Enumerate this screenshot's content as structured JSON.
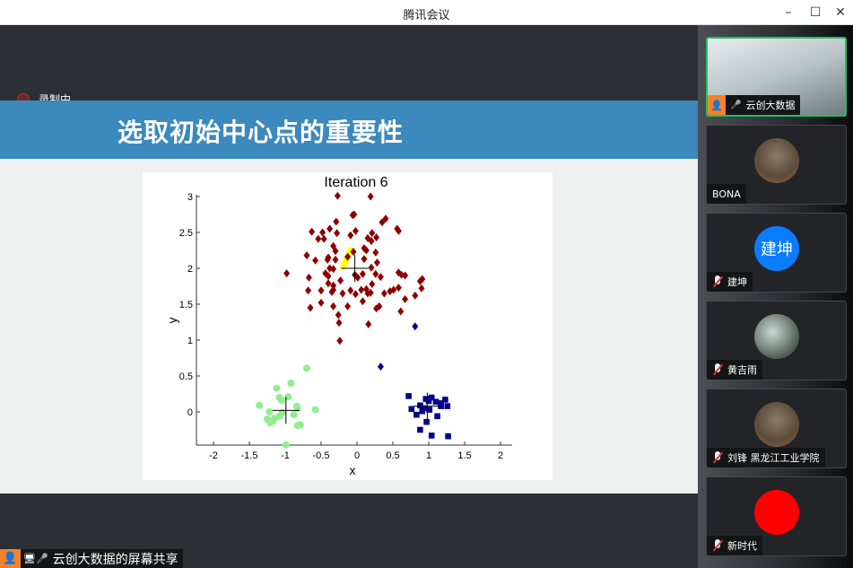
{
  "window": {
    "title": "腾讯会议",
    "controls": [
      "minimize-icon",
      "maximize-icon",
      "close-icon"
    ]
  },
  "recording": {
    "label": "录制中",
    "color": "#b33333"
  },
  "slide": {
    "title": "选取初始中心点的重要性",
    "band_color": "#3b89bd"
  },
  "chart_data": {
    "type": "scatter",
    "title": "Iteration 6",
    "xlabel": "x",
    "ylabel": "y",
    "xlim": [
      -2.24,
      2.16
    ],
    "ylim": [
      -0.46,
      3.0
    ],
    "xticks": [
      "-2",
      "-1.5",
      "-1",
      "-0.5",
      "0",
      "0.5",
      "1",
      "1.5",
      "2"
    ],
    "yticks": [
      "0",
      "0.5",
      "1",
      "1.5",
      "2",
      "2.5",
      "3"
    ],
    "grid": false,
    "series": [
      {
        "marker": "diamond",
        "color": "#8b0000",
        "points": [
          [
            -0.27,
            3.01
          ],
          [
            0.19,
            3.0
          ],
          [
            -0.06,
            2.74
          ],
          [
            -0.04,
            2.75
          ],
          [
            0.4,
            2.69
          ],
          [
            0.35,
            2.64
          ],
          [
            -0.29,
            2.65
          ],
          [
            -0.63,
            2.51
          ],
          [
            -0.48,
            2.5
          ],
          [
            -0.38,
            2.55
          ],
          [
            -0.28,
            2.49
          ],
          [
            -0.02,
            2.52
          ],
          [
            -0.09,
            2.46
          ],
          [
            0.21,
            2.49
          ],
          [
            0.27,
            2.43
          ],
          [
            -0.54,
            2.41
          ],
          [
            -0.46,
            2.41
          ],
          [
            0.15,
            2.42
          ],
          [
            0.2,
            2.38
          ],
          [
            -0.33,
            2.31
          ],
          [
            -0.3,
            2.24
          ],
          [
            0.1,
            2.28
          ],
          [
            0.13,
            2.25
          ],
          [
            -0.05,
            2.23
          ],
          [
            0.26,
            2.22
          ],
          [
            -0.7,
            2.18
          ],
          [
            -0.58,
            2.11
          ],
          [
            -0.4,
            2.15
          ],
          [
            -0.41,
            2.12
          ],
          [
            -0.3,
            2.12
          ],
          [
            -0.13,
            2.16
          ],
          [
            0.1,
            2.13
          ],
          [
            0.28,
            2.08
          ],
          [
            0.56,
            2.55
          ],
          [
            0.58,
            2.52
          ],
          [
            -0.38,
            2.0
          ],
          [
            -0.33,
            1.99
          ],
          [
            0.2,
            2.01
          ],
          [
            -0.98,
            1.93
          ],
          [
            -0.67,
            1.87
          ],
          [
            -0.44,
            1.93
          ],
          [
            -0.4,
            1.89
          ],
          [
            -0.03,
            1.91
          ],
          [
            0.01,
            1.87
          ],
          [
            0.08,
            1.92
          ],
          [
            0.26,
            1.92
          ],
          [
            0.33,
            1.88
          ],
          [
            0.58,
            1.94
          ],
          [
            0.62,
            1.91
          ],
          [
            0.67,
            1.9
          ],
          [
            -0.4,
            1.79
          ],
          [
            -0.33,
            1.76
          ],
          [
            -0.23,
            1.83
          ],
          [
            0.21,
            1.78
          ],
          [
            0.88,
            1.82
          ],
          [
            0.91,
            1.85
          ],
          [
            -0.68,
            1.69
          ],
          [
            -0.5,
            1.69
          ],
          [
            -0.33,
            1.7
          ],
          [
            -0.35,
            1.67
          ],
          [
            -0.2,
            1.65
          ],
          [
            -0.09,
            1.69
          ],
          [
            -0.02,
            1.64
          ],
          [
            0.06,
            1.7
          ],
          [
            0.13,
            1.71
          ],
          [
            0.15,
            1.65
          ],
          [
            0.19,
            1.66
          ],
          [
            0.38,
            1.65
          ],
          [
            0.46,
            1.68
          ],
          [
            0.51,
            1.7
          ],
          [
            0.58,
            1.73
          ],
          [
            0.81,
            1.62
          ],
          [
            0.9,
            1.72
          ],
          [
            0.67,
            1.57
          ],
          [
            -0.5,
            1.52
          ],
          [
            -0.65,
            1.45
          ],
          [
            -0.33,
            1.47
          ],
          [
            -0.13,
            1.47
          ],
          [
            0.08,
            1.54
          ],
          [
            0.27,
            1.44
          ],
          [
            0.31,
            1.47
          ],
          [
            0.61,
            1.4
          ],
          [
            -0.26,
            1.35
          ],
          [
            -0.25,
            1.24
          ],
          [
            0.16,
            1.22
          ],
          [
            -0.24,
            0.99
          ]
        ]
      },
      {
        "marker": "diamond",
        "color": "#00008b",
        "points": [
          [
            0.81,
            1.19
          ],
          [
            0.33,
            0.63
          ]
        ]
      },
      {
        "marker": "square",
        "color": "#00008b",
        "points": [
          [
            0.72,
            0.22
          ],
          [
            0.96,
            0.18
          ],
          [
            1.04,
            0.2
          ],
          [
            1.1,
            0.14
          ],
          [
            1.23,
            0.17
          ],
          [
            1.17,
            0.08
          ],
          [
            1.26,
            0.08
          ],
          [
            0.76,
            0.04
          ],
          [
            0.88,
            0.09
          ],
          [
            0.94,
            0.05
          ],
          [
            1.01,
            0.03
          ],
          [
            0.91,
            0.01
          ],
          [
            0.83,
            -0.04
          ],
          [
            1.12,
            -0.06
          ],
          [
            0.97,
            -0.14
          ],
          [
            0.88,
            -0.25
          ],
          [
            1.04,
            -0.33
          ],
          [
            1.27,
            -0.34
          ],
          [
            1.17,
            0.12
          ],
          [
            1.0,
            0.15
          ]
        ]
      },
      {
        "marker": "circle",
        "color": "#90ee90",
        "points": [
          [
            -0.7,
            0.61
          ],
          [
            -0.92,
            0.4
          ],
          [
            -1.12,
            0.33
          ],
          [
            -0.96,
            0.21
          ],
          [
            -1.08,
            0.2
          ],
          [
            -1.05,
            0.16
          ],
          [
            -1.36,
            0.09
          ],
          [
            -0.84,
            0.08
          ],
          [
            -0.83,
            0.05
          ],
          [
            -1.22,
            0.0
          ],
          [
            -0.58,
            0.03
          ],
          [
            -0.88,
            -0.04
          ],
          [
            -1.04,
            -0.01
          ],
          [
            -1.08,
            -0.06
          ],
          [
            -1.15,
            -0.09
          ],
          [
            -1.25,
            -0.1
          ],
          [
            -1.21,
            -0.15
          ],
          [
            -1.17,
            -0.13
          ],
          [
            -0.83,
            -0.19
          ],
          [
            -0.79,
            -0.18
          ],
          [
            -0.99,
            -0.46
          ]
        ]
      }
    ],
    "centroids": [
      {
        "x": -0.03,
        "y": 2.0,
        "color": "#000000"
      },
      {
        "x": 0.98,
        "y": 0.08,
        "color": "#000000"
      },
      {
        "x": -0.99,
        "y": 0.02,
        "color": "#000000"
      }
    ],
    "highlight": {
      "x": -0.15,
      "y": 2.15,
      "color": "#ffff00"
    }
  },
  "participants": [
    {
      "name": "云创大数据",
      "type": "video",
      "mic": "on",
      "active": true
    },
    {
      "name": "BONA",
      "type": "photo",
      "mic": "none"
    },
    {
      "name": "建坤",
      "type": "initials",
      "avatar_text": "建坤",
      "avatar_color": "#0a7cff",
      "mic": "off"
    },
    {
      "name": "黄吉雨",
      "type": "photo",
      "mic": "off"
    },
    {
      "name": "刘锋 黑龙江工业学院",
      "type": "photo",
      "mic": "off"
    },
    {
      "name": "新时代",
      "type": "photo",
      "avatar_color": "#ff0000",
      "mic": "off"
    }
  ],
  "screen_share": {
    "label": "云创大数据的屏幕共享"
  }
}
